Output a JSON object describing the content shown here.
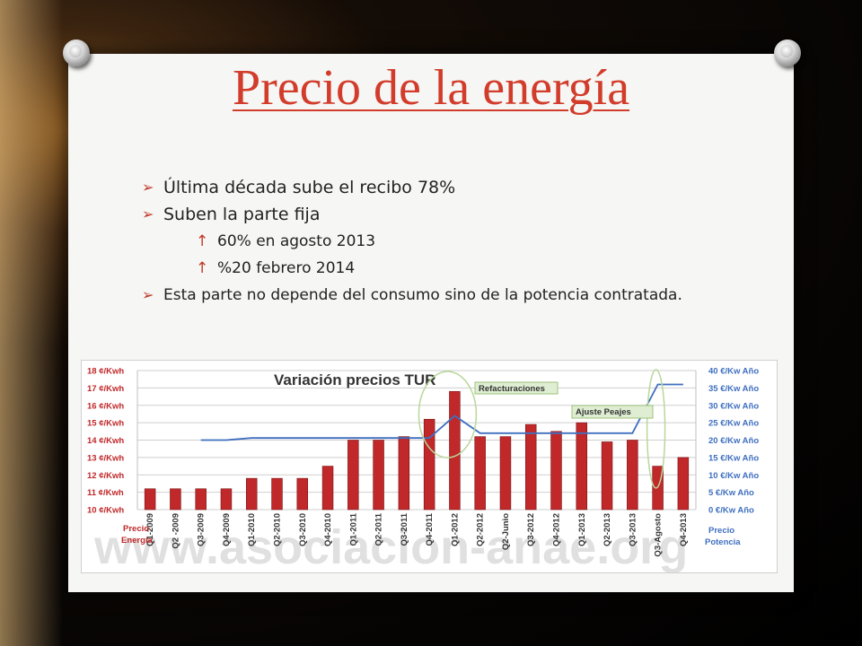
{
  "slide": {
    "title": "Precio de la energía",
    "bullets": [
      {
        "text": "Última década sube el recibo 78%",
        "level": 1
      },
      {
        "text": "Suben la parte fija",
        "level": 1
      },
      {
        "text": "60% en agosto 2013",
        "level": 2
      },
      {
        "text": "%20 febrero 2014",
        "level": 2
      },
      {
        "text": "Esta parte no depende del consumo sino de la potencia contratada.",
        "level": 1
      }
    ],
    "watermark": "www.asociacion-anae.org"
  },
  "chart_data": {
    "type": "bar",
    "title": "Variación precios TUR",
    "categories": [
      "Q1-2009",
      "Q2 -2009",
      "Q3-2009",
      "Q4-2009",
      "Q1-2010",
      "Q2-2010",
      "Q3-2010",
      "Q4-2010",
      "Q1-2011",
      "Q2-2011",
      "Q3-2011",
      "Q4-2011",
      "Q1-2012",
      "Q2-2012",
      "Q2-Junio",
      "Q3-2012",
      "Q4-2012",
      "Q1-2013",
      "Q2-2013",
      "Q3-2013",
      "Q3-Agosto",
      "Q4-2013"
    ],
    "series": [
      {
        "name": "Precio Energía",
        "axis": "left",
        "type": "bar",
        "color": "#c0282a",
        "values": [
          11.2,
          11.2,
          11.2,
          11.2,
          11.8,
          11.8,
          11.8,
          12.5,
          14.0,
          14.0,
          14.2,
          15.2,
          16.8,
          14.2,
          14.2,
          14.9,
          14.5,
          15.0,
          13.9,
          14.0,
          12.5,
          13.0
        ]
      },
      {
        "name": "Precio Potencia",
        "axis": "right",
        "type": "line",
        "color": "#3f6fbf",
        "values": [
          null,
          null,
          20,
          20,
          20.6,
          20.6,
          20.6,
          20.6,
          20.6,
          20.6,
          20.6,
          20.6,
          27,
          22,
          22,
          22,
          22,
          22,
          22,
          22,
          36,
          36
        ]
      }
    ],
    "y_left": {
      "label": "Precio Energía",
      "ylim": [
        10,
        18
      ],
      "ticks": [
        "10 ¢/Kwh",
        "11 ¢/Kwh",
        "12 ¢/Kwh",
        "13 ¢/Kwh",
        "14 ¢/Kwh",
        "15 ¢/Kwh",
        "16 ¢/Kwh",
        "17 ¢/Kwh",
        "18 ¢/Kwh"
      ]
    },
    "y_right": {
      "label": "Precio Potencia",
      "ylim": [
        0,
        40
      ],
      "ticks": [
        "0 €/Kw Año",
        "5 €/Kw Año",
        "10 €/Kw Año",
        "15 €/Kw Año",
        "20 €/Kw Año",
        "25 €/Kw Año",
        "30 €/Kw Año",
        "35 €/Kw Año",
        "40 €/Kw Año"
      ]
    },
    "annotations": [
      {
        "text": "Refacturaciones",
        "category": "Q1-2012"
      },
      {
        "text": "Ajuste Peajes",
        "category": "Q3-Agosto"
      }
    ],
    "grid": true
  }
}
